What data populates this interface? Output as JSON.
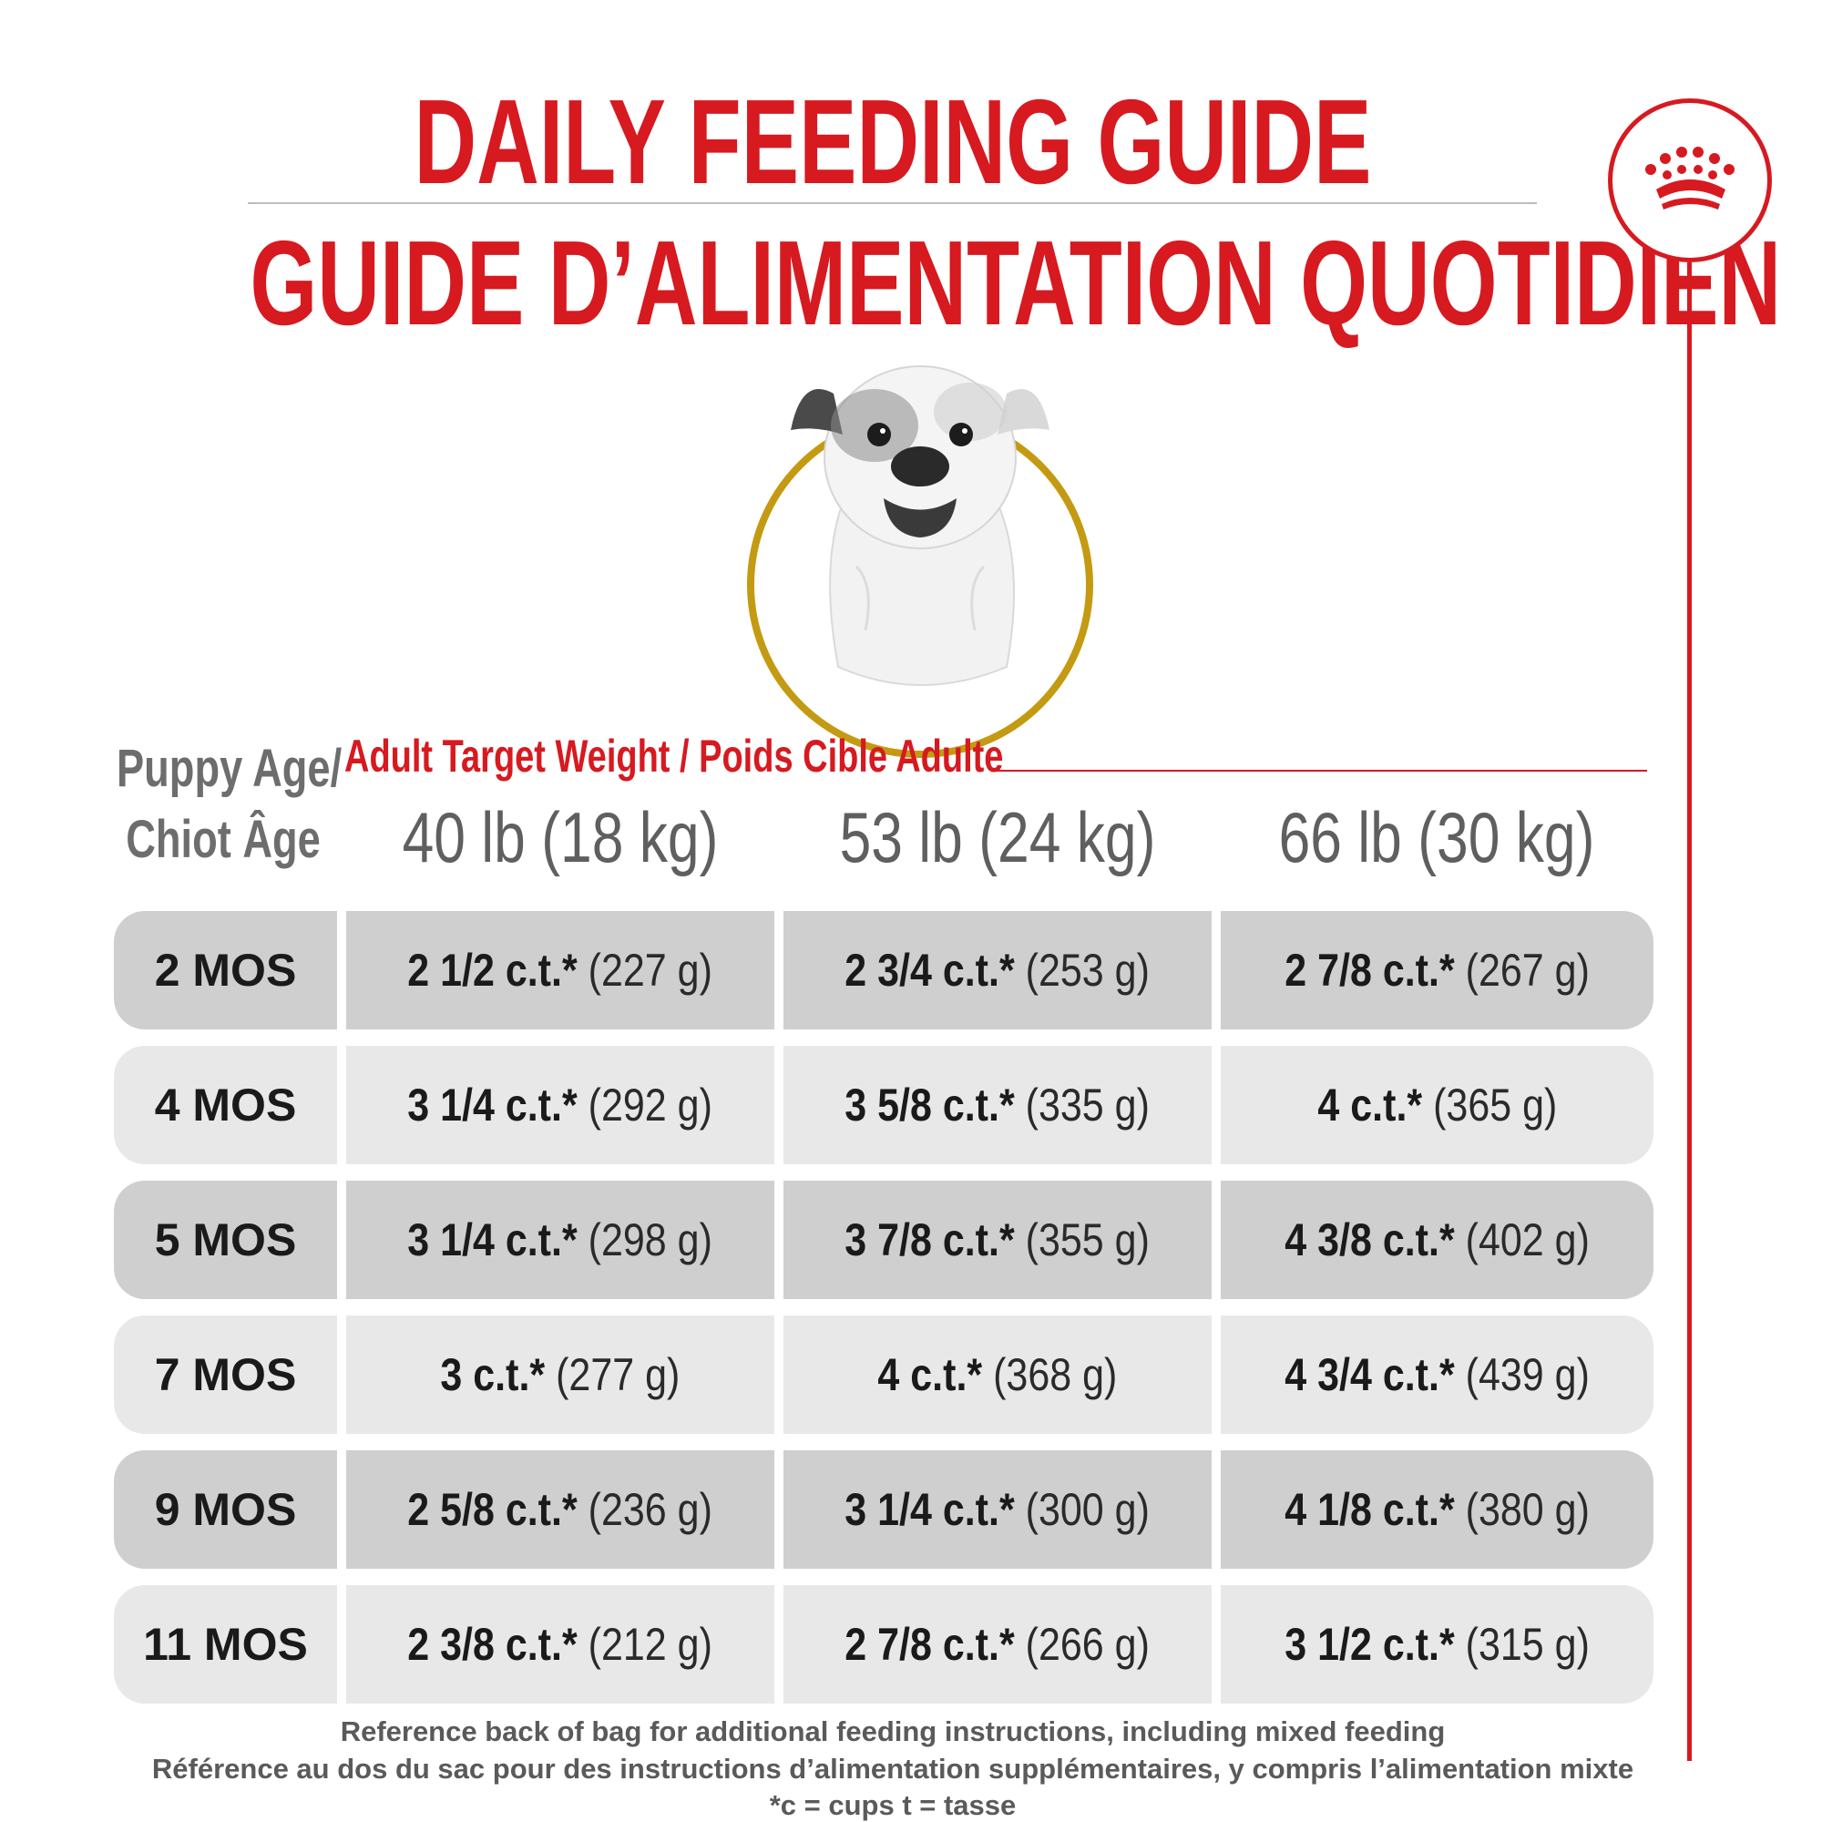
{
  "title_en": "DAILY FEEDING GUIDE",
  "title_fr": "GUIDE D’ALIMENTATION QUOTIDIEN",
  "header": {
    "age_line1": "Puppy Age/",
    "age_line2": "Chiot Âge",
    "target_weight": "Adult Target Weight / Poids Cible Adulte",
    "columns": [
      "40 lb (18 kg)",
      "53 lb (24 kg)",
      "66 lb (30 kg)"
    ]
  },
  "rows": [
    {
      "age": "2 MOS",
      "cells": [
        [
          "2 1/2 c.t.*",
          "(227 g)"
        ],
        [
          "2 3/4 c.t.*",
          "(253 g)"
        ],
        [
          "2 7/8 c.t.*",
          "(267 g)"
        ]
      ]
    },
    {
      "age": "4 MOS",
      "cells": [
        [
          "3 1/4 c.t.*",
          "(292 g)"
        ],
        [
          "3 5/8 c.t.*",
          "(335 g)"
        ],
        [
          "4 c.t.*",
          "(365 g)"
        ]
      ]
    },
    {
      "age": "5 MOS",
      "cells": [
        [
          "3 1/4 c.t.*",
          "(298 g)"
        ],
        [
          "3 7/8 c.t.*",
          "(355 g)"
        ],
        [
          "4 3/8 c.t.*",
          "(402 g)"
        ]
      ]
    },
    {
      "age": "7 MOS",
      "cells": [
        [
          "3 c.t.*",
          "(277 g)"
        ],
        [
          "4 c.t.*",
          "(368 g)"
        ],
        [
          "4 3/4 c.t.*",
          "(439 g)"
        ]
      ]
    },
    {
      "age": "9 MOS",
      "cells": [
        [
          "2 5/8 c.t.*",
          "(236 g)"
        ],
        [
          "3 1/4 c.t.*",
          "(300 g)"
        ],
        [
          "4 1/8 c.t.*",
          "(380 g)"
        ]
      ]
    },
    {
      "age": "11 MOS",
      "cells": [
        [
          "2 3/8 c.t.*",
          "(212 g)"
        ],
        [
          "2 7/8 c.t.*",
          "(266 g)"
        ],
        [
          "3 1/2 c.t.*",
          "(315 g)"
        ]
      ]
    }
  ],
  "footer": {
    "line1": "Reference back of bag for additional feeding instructions, including mixed feeding",
    "line2": "Référence au dos du sac pour des instructions d’alimentation supplémentaires, y compris l’alimentation mixte",
    "line3": "*c = cups t = tasse"
  },
  "colors": {
    "brand_red": "#d71920",
    "ring_gold": "#c49a12",
    "row_dark": "#cfcfcf",
    "row_light": "#e8e8e8"
  },
  "icons": {
    "brand": "crown-icon",
    "photo": "puppy-photo"
  }
}
